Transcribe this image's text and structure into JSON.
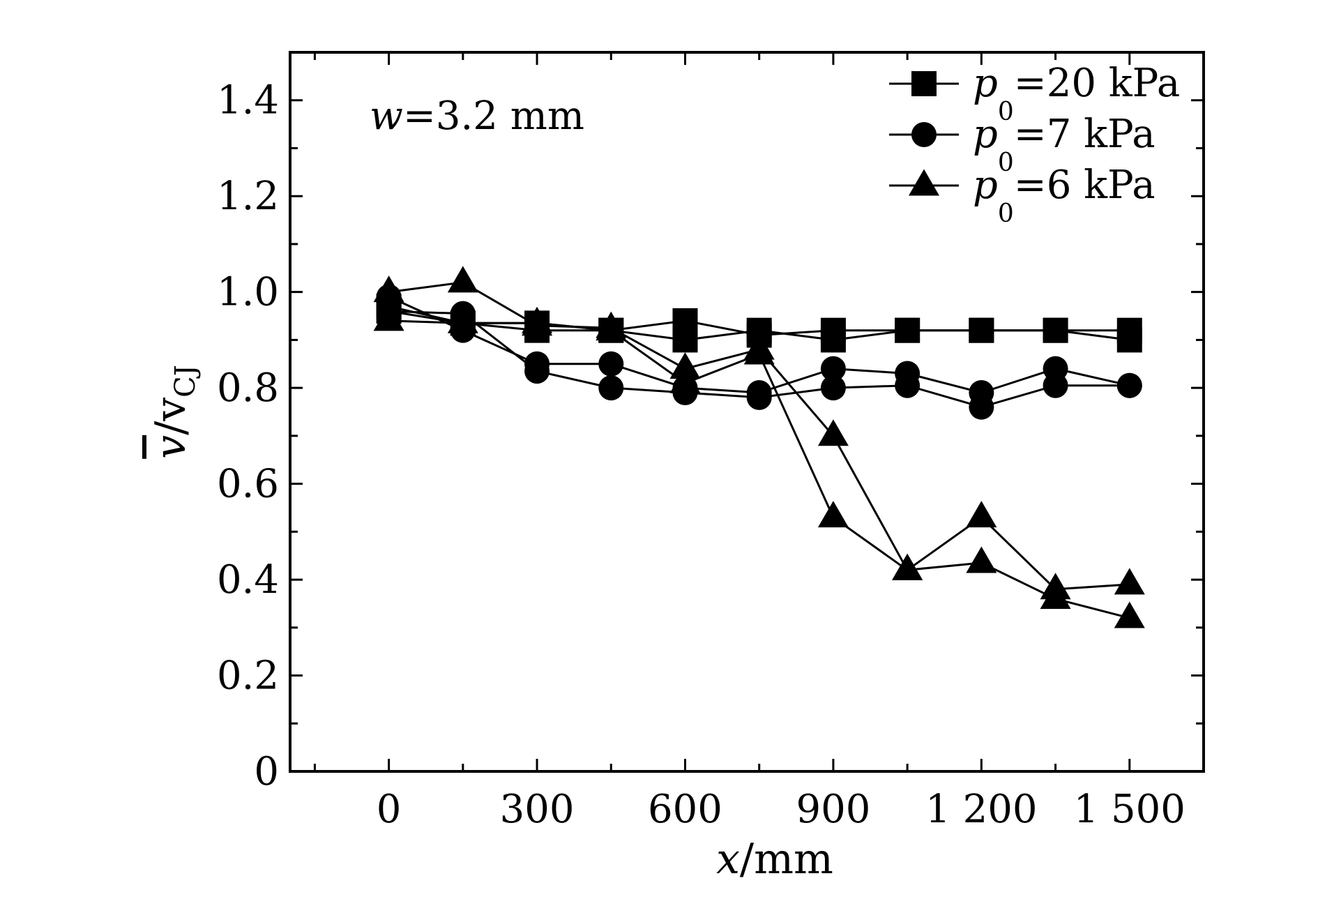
{
  "chart_data": {
    "type": "line",
    "annotation": {
      "italic": "w",
      "text": "=3.2 mm"
    },
    "xlabel": {
      "italic": "x",
      "text": "/mm"
    },
    "ylabel": {
      "overbar_italic": "v",
      "text": "/v",
      "subscript": "CJ"
    },
    "xlim": [
      -200,
      1650
    ],
    "ylim": [
      0,
      1.5
    ],
    "x_ticks": [
      0,
      300,
      600,
      900,
      1200,
      1500
    ],
    "x_tick_labels": [
      "0",
      "300",
      "600",
      "900",
      "1 200",
      "1 500"
    ],
    "x_minor_ticks": [
      -150,
      150,
      450,
      750,
      1050,
      1350,
      1650
    ],
    "y_ticks": [
      0,
      0.2,
      0.4,
      0.6,
      0.8,
      1.0,
      1.2,
      1.4
    ],
    "y_tick_labels": [
      "0",
      "0.2",
      "0.4",
      "0.6",
      "0.8",
      "1.0",
      "1.2",
      "1.4"
    ],
    "y_minor_ticks": [
      0.1,
      0.3,
      0.5,
      0.7,
      0.9,
      1.1,
      1.3
    ],
    "legend_position": "top-right",
    "series": [
      {
        "legend": {
          "italic": "p",
          "subscript": "0",
          "text": "=20 kPa"
        },
        "marker": "square",
        "runs": [
          {
            "x": [
              0,
              150,
              300,
              450,
              600,
              750,
              900,
              1050,
              1200,
              1350,
              1500
            ],
            "y": [
              0.96,
              0.935,
              0.935,
              0.92,
              0.94,
              0.91,
              0.92,
              0.92,
              0.92,
              0.92,
              0.92
            ]
          },
          {
            "x": [
              0,
              150,
              300,
              450,
              600,
              750,
              900,
              1050,
              1200,
              1350,
              1500
            ],
            "y": [
              0.97,
              0.935,
              0.92,
              0.92,
              0.9,
              0.92,
              0.9,
              0.92,
              0.92,
              0.92,
              0.9
            ]
          }
        ]
      },
      {
        "legend": {
          "italic": "p",
          "subscript": "0",
          "text": "=7 kPa"
        },
        "marker": "circle",
        "runs": [
          {
            "x": [
              0,
              150,
              300,
              450,
              600,
              750,
              900,
              1050,
              1200,
              1350,
              1500
            ],
            "y": [
              0.99,
              0.92,
              0.85,
              0.85,
              0.8,
              0.79,
              0.84,
              0.83,
              0.79,
              0.84,
              0.805
            ]
          },
          {
            "x": [
              0,
              150,
              300,
              450,
              600,
              750,
              900,
              1050,
              1200,
              1350,
              1500
            ],
            "y": [
              0.96,
              0.955,
              0.835,
              0.8,
              0.79,
              0.78,
              0.8,
              0.805,
              0.76,
              0.805,
              0.805
            ]
          }
        ]
      },
      {
        "legend": {
          "italic": "p",
          "subscript": "0",
          "text": "=6 kPa"
        },
        "marker": "triangle",
        "runs": [
          {
            "x": [
              0,
              150,
              300,
              450,
              600,
              750,
              900,
              1050,
              1200,
              1350,
              1500
            ],
            "y": [
              1.0,
              1.02,
              0.93,
              0.925,
              0.84,
              0.88,
              0.7,
              0.42,
              0.53,
              0.38,
              0.39
            ]
          },
          {
            "x": [
              0,
              150,
              300,
              450,
              600,
              750,
              900,
              1050,
              1200,
              1350,
              1500
            ],
            "y": [
              0.94,
              0.935,
              0.935,
              0.92,
              0.81,
              0.87,
              0.53,
              0.42,
              0.435,
              0.36,
              0.32
            ]
          }
        ]
      }
    ]
  }
}
